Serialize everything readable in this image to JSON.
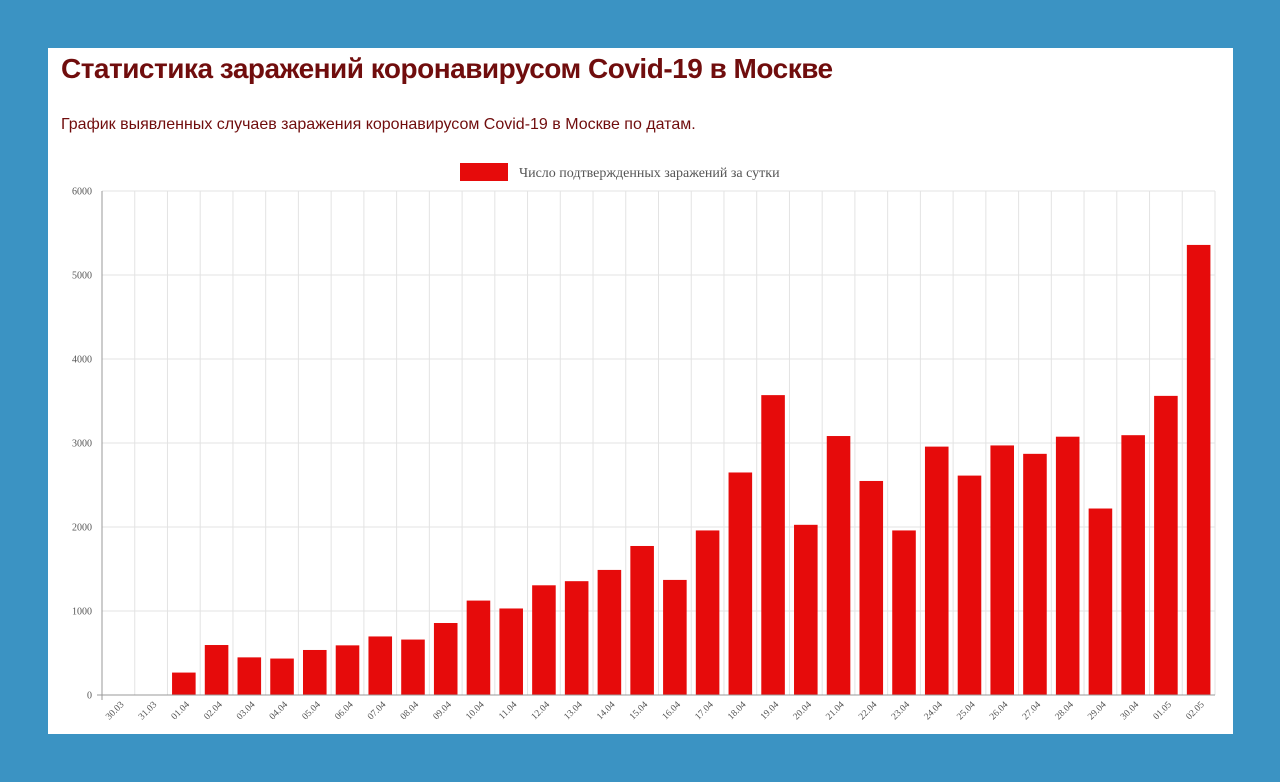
{
  "page": {
    "title": "Статистика заражений коронавирусом Covid-19 в Москве",
    "subtitle": "График выявленных случаев заражения коронавирусом Covid-19 в Москве по датам."
  },
  "colors": {
    "background": "#3b93c3",
    "title": "#700d0d",
    "bar": "#e60b0b",
    "grid": "#e3e3e3"
  },
  "chart_data": {
    "type": "bar",
    "legend": "Число подтвержденных заражений за сутки",
    "legend_position": "top-center",
    "grid": true,
    "ylim": [
      0,
      6000
    ],
    "yticks": [
      0,
      1000,
      2000,
      3000,
      4000,
      5000,
      6000
    ],
    "categories": [
      "30.03",
      "31.03",
      "01.04",
      "02.04",
      "03.04",
      "04.04",
      "05.04",
      "06.04",
      "07.04",
      "08.04",
      "09.04",
      "10.04",
      "11.04",
      "12.04",
      "13.04",
      "14.04",
      "15.04",
      "16.04",
      "17.04",
      "18.04",
      "19.04",
      "20.04",
      "21.04",
      "22.04",
      "23.04",
      "24.04",
      "25.04",
      "26.04",
      "27.04",
      "28.04",
      "29.04",
      "30.04",
      "01.05",
      "02.05"
    ],
    "series": [
      {
        "name": "Число подтвержденных заражений за сутки",
        "values": [
          0,
          0,
          267,
          595,
          448,
          434,
          536,
          591,
          697,
          660,
          857,
          1124,
          1030,
          1306,
          1355,
          1489,
          1774,
          1370,
          1959,
          2649,
          3570,
          2026,
          3083,
          2548,
          1959,
          2957,
          2612,
          2971,
          2871,
          3075,
          2220,
          3093,
          3561,
          5358
        ]
      }
    ]
  }
}
